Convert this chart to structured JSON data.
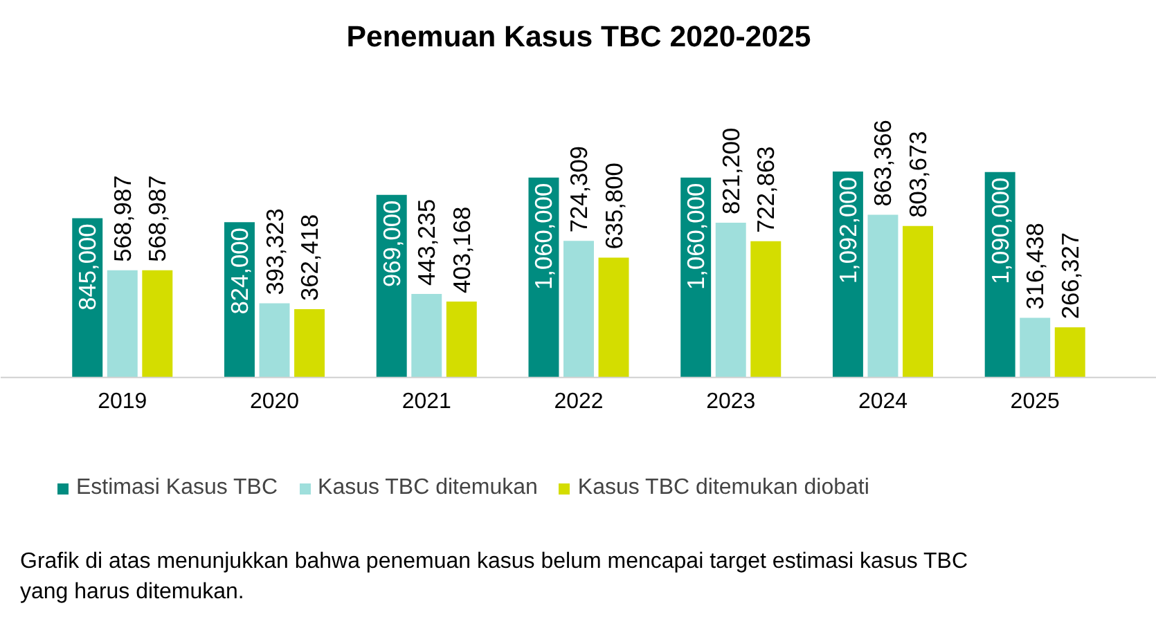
{
  "chart_data": {
    "type": "bar",
    "title": "Penemuan Kasus TBC 2020-2025",
    "categories": [
      "2019",
      "2020",
      "2021",
      "2022",
      "2023",
      "2024",
      "2025"
    ],
    "series": [
      {
        "name": "Estimasi Kasus TBC",
        "color": "#008c80",
        "values": [
          845000,
          824000,
          969000,
          1060000,
          1060000,
          1092000,
          1090000
        ],
        "value_labels": [
          "845,000",
          "824,000",
          "969,000",
          "1,060,000",
          "1,060,000",
          "1,092,000",
          "1,090,000"
        ]
      },
      {
        "name": "Kasus TBC ditemukan",
        "color": "#9fdfdc",
        "values": [
          568987,
          393323,
          443235,
          724309,
          821200,
          863366,
          316438
        ],
        "value_labels": [
          "568,987",
          "393,323",
          "443,235",
          "724,309",
          "821,200",
          "863,366",
          "316,438"
        ]
      },
      {
        "name": "Kasus TBC ditemukan diobati",
        "color": "#d4dd00",
        "values": [
          568987,
          362418,
          403168,
          635800,
          722863,
          803673,
          266327
        ],
        "value_labels": [
          "568,987",
          "362,418",
          "403,168",
          "635,800",
          "722,863",
          "803,673",
          "266,327"
        ]
      }
    ],
    "grid": false,
    "legend": "bottom",
    "annotations": [
      "Grafik di atas menunjukkan bahwa penemuan kasus belum mencapai target estimasi kasus TBC yang harus ditemukan."
    ]
  }
}
